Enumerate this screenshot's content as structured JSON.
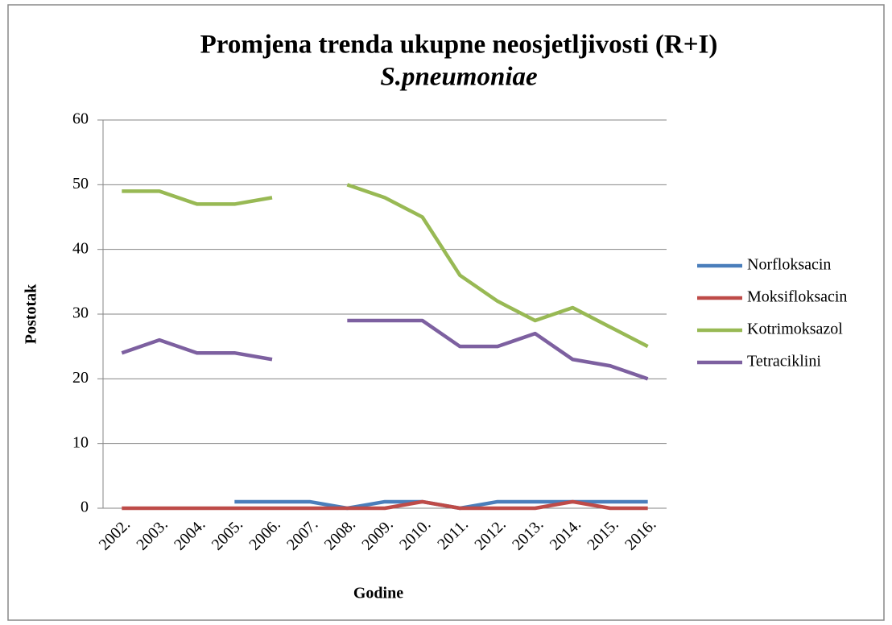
{
  "chart_data": {
    "type": "line",
    "title": "Promjena trenda ukupne neosjetljivosti (R+I)",
    "subtitle": "S.pneumoniae",
    "xlabel": "Godine",
    "ylabel": "Postotak",
    "categories": [
      "2002.",
      "2003.",
      "2004.",
      "2005.",
      "2006.",
      "2007.",
      "2008.",
      "2009.",
      "2010.",
      "2011.",
      "2012.",
      "2013.",
      "2014.",
      "2015.",
      "2016."
    ],
    "series": [
      {
        "name": "Norfloksacin",
        "color": "#4a7ebb",
        "values": [
          null,
          null,
          null,
          1,
          1,
          1,
          0,
          1,
          1,
          0,
          1,
          1,
          1,
          1,
          1
        ]
      },
      {
        "name": "Moksifloksacin",
        "color": "#be4b48",
        "values": [
          0,
          0,
          0,
          0,
          0,
          0,
          0,
          0,
          1,
          0,
          0,
          0,
          1,
          0,
          0
        ]
      },
      {
        "name": "Kotrimoksazol",
        "color": "#98b954",
        "values": [
          49,
          49,
          47,
          47,
          48,
          null,
          50,
          48,
          45,
          36,
          32,
          29,
          31,
          28,
          25
        ]
      },
      {
        "name": "Tetraciklini",
        "color": "#7d60a0",
        "values": [
          24,
          26,
          24,
          24,
          23,
          null,
          29,
          29,
          29,
          25,
          25,
          27,
          23,
          22,
          20
        ]
      }
    ],
    "ylim": [
      0,
      60
    ],
    "yticks": [
      0,
      10,
      20,
      30,
      40,
      50,
      60
    ],
    "grid": true,
    "legend": "right"
  }
}
